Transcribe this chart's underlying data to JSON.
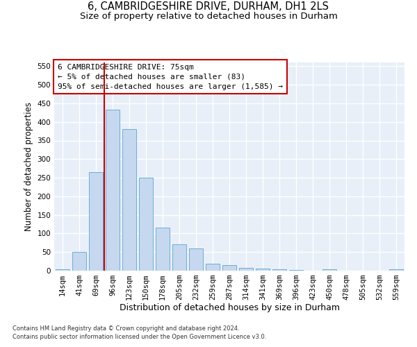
{
  "title1": "6, CAMBRIDGESHIRE DRIVE, DURHAM, DH1 2LS",
  "title2": "Size of property relative to detached houses in Durham",
  "xlabel": "Distribution of detached houses by size in Durham",
  "ylabel": "Number of detached properties",
  "categories": [
    "14sqm",
    "41sqm",
    "69sqm",
    "96sqm",
    "123sqm",
    "150sqm",
    "178sqm",
    "205sqm",
    "232sqm",
    "259sqm",
    "287sqm",
    "314sqm",
    "341sqm",
    "369sqm",
    "396sqm",
    "423sqm",
    "450sqm",
    "478sqm",
    "505sqm",
    "532sqm",
    "559sqm"
  ],
  "values": [
    3,
    50,
    265,
    433,
    381,
    250,
    115,
    71,
    59,
    18,
    15,
    8,
    5,
    4,
    1,
    0,
    3,
    0,
    0,
    0,
    3
  ],
  "bar_color": "#c5d8f0",
  "bar_edge_color": "#6baed6",
  "vline_color": "#cc0000",
  "vline_x_index": 2.5,
  "plot_bg_color": "#e8eff8",
  "fig_bg_color": "#ffffff",
  "ylim": [
    0,
    560
  ],
  "yticks": [
    0,
    50,
    100,
    150,
    200,
    250,
    300,
    350,
    400,
    450,
    500,
    550
  ],
  "annotation_line1": "6 CAMBRIDGESHIRE DRIVE: 75sqm",
  "annotation_line2": "← 5% of detached houses are smaller (83)",
  "annotation_line3": "95% of semi-detached houses are larger (1,585) →",
  "annot_box_edge_color": "#cc0000",
  "annot_box_face_color": "#ffffff",
  "footer1": "Contains HM Land Registry data © Crown copyright and database right 2024.",
  "footer2": "Contains public sector information licensed under the Open Government Licence v3.0.",
  "title1_fontsize": 10.5,
  "title2_fontsize": 9.5,
  "tick_fontsize": 7.5,
  "ylabel_fontsize": 8.5,
  "xlabel_fontsize": 9,
  "annot_fontsize": 8,
  "footer_fontsize": 6
}
